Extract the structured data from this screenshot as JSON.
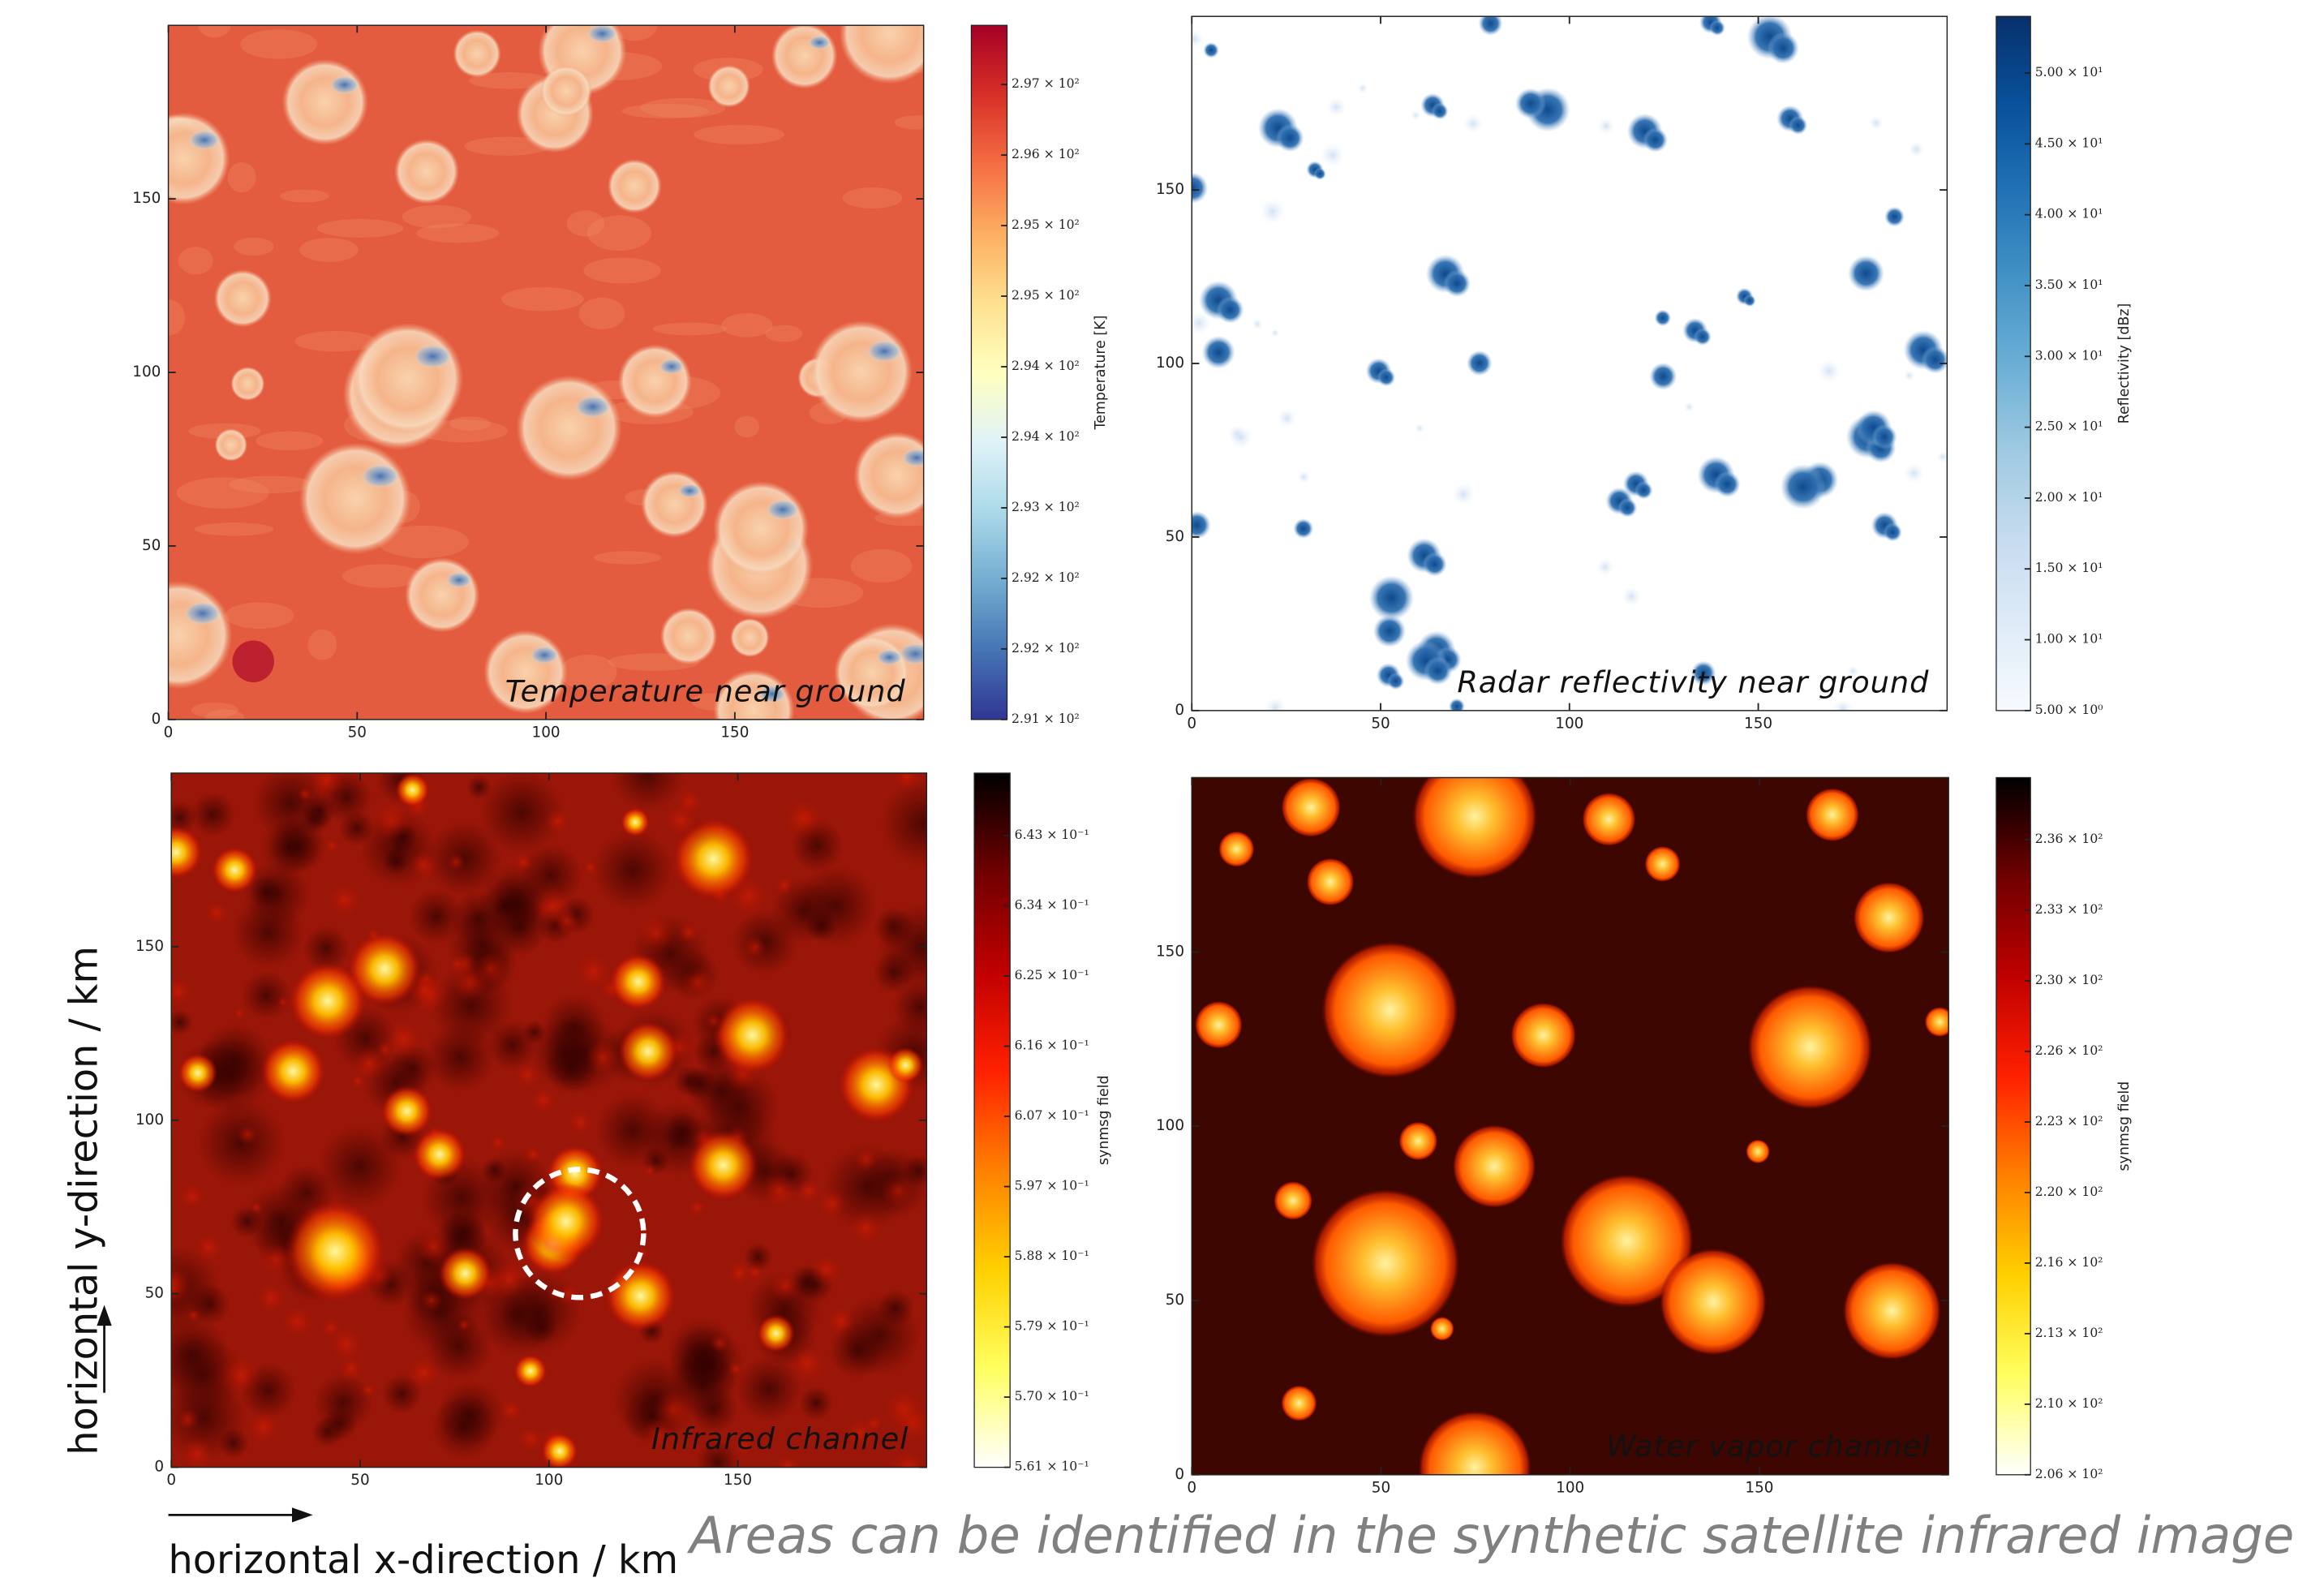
{
  "figure": {
    "ylabel": "horizontal y-direction / km",
    "xlabel": "horizontal x-direction / km",
    "caption": "Areas can be identified in the synthetic satellite infrared image"
  },
  "chart_data": [
    {
      "type": "heatmap",
      "title": "Temperature near ground",
      "xlim": [
        0,
        200
      ],
      "ylim": [
        0,
        200
      ],
      "xticks": [
        0,
        50,
        100,
        150
      ],
      "yticks": [
        0,
        50,
        100,
        150
      ],
      "colormap": [
        "#313695",
        "#4575b4",
        "#74add1",
        "#abd9e9",
        "#e0f3f8",
        "#ffffbf",
        "#fee090",
        "#fdae61",
        "#f46d43",
        "#d73027",
        "#a50026"
      ],
      "colorbar": {
        "label": "Temperature [K]",
        "lim": [
          291.1,
          297.2
        ],
        "ticks": [
          {
            "value": 291.1,
            "label": "2.91 × 10²"
          },
          {
            "value": 291.72,
            "label": "2.92 × 10²"
          },
          {
            "value": 292.34,
            "label": "2.92 × 10²"
          },
          {
            "value": 292.96,
            "label": "2.93 × 10²"
          },
          {
            "value": 293.58,
            "label": "2.94 × 10²"
          },
          {
            "value": 294.2,
            "label": "2.94 × 10²"
          },
          {
            "value": 294.82,
            "label": "2.95 × 10²"
          },
          {
            "value": 295.44,
            "label": "2.95 × 10²"
          },
          {
            "value": 296.06,
            "label": "2.96 × 10²"
          },
          {
            "value": 296.68,
            "label": "2.97 × 10²"
          }
        ]
      }
    },
    {
      "type": "heatmap",
      "title": "Radar reflectivity near ground",
      "xlim": [
        0,
        200
      ],
      "ylim": [
        0,
        200
      ],
      "xticks": [
        0,
        50,
        100,
        150
      ],
      "yticks": [
        0,
        50,
        100,
        150
      ],
      "colormap": [
        "#f7fbff",
        "#deebf7",
        "#c6dbef",
        "#9ecae1",
        "#6baed6",
        "#4292c6",
        "#2171b5",
        "#08519c",
        "#08306b"
      ],
      "colorbar": {
        "label": "Reflectivity [dBz]",
        "lim": [
          5,
          54
        ],
        "ticks": [
          {
            "value": 5,
            "label": "5.00 × 10⁰"
          },
          {
            "value": 10,
            "label": "1.00 × 10¹"
          },
          {
            "value": 15,
            "label": "1.50 × 10¹"
          },
          {
            "value": 20,
            "label": "2.00 × 10¹"
          },
          {
            "value": 25,
            "label": "2.50 × 10¹"
          },
          {
            "value": 30,
            "label": "3.00 × 10¹"
          },
          {
            "value": 35,
            "label": "3.50 × 10¹"
          },
          {
            "value": 40,
            "label": "4.00 × 10¹"
          },
          {
            "value": 45,
            "label": "4.50 × 10¹"
          },
          {
            "value": 50,
            "label": "5.00 × 10¹"
          }
        ]
      }
    },
    {
      "type": "heatmap",
      "title": "Infrared channel",
      "xlim": [
        0,
        200
      ],
      "ylim": [
        0,
        200
      ],
      "xticks": [
        0,
        50,
        100,
        150
      ],
      "yticks": [
        0,
        50,
        100,
        150
      ],
      "colormap": [
        "#ffffff",
        "#ffff60",
        "#ffd000",
        "#ff8000",
        "#ff2000",
        "#c00000",
        "#700000",
        "#000000"
      ],
      "colorbar": {
        "label": "synmsg field",
        "lim": [
          0.561,
          0.6512
        ],
        "ticks": [
          {
            "value": 0.561,
            "label": "5.61 × 10⁻¹"
          },
          {
            "value": 0.57012,
            "label": "5.70 × 10⁻¹"
          },
          {
            "value": 0.57924,
            "label": "5.79 × 10⁻¹"
          },
          {
            "value": 0.58836,
            "label": "5.88 × 10⁻¹"
          },
          {
            "value": 0.59748,
            "label": "5.97 × 10⁻¹"
          },
          {
            "value": 0.6066,
            "label": "6.07 × 10⁻¹"
          },
          {
            "value": 0.61572,
            "label": "6.16 × 10⁻¹"
          },
          {
            "value": 0.62484,
            "label": "6.25 × 10⁻¹"
          },
          {
            "value": 0.63396,
            "label": "6.34 × 10⁻¹"
          },
          {
            "value": 0.64308,
            "label": "6.43 × 10⁻¹"
          }
        ]
      }
    },
    {
      "type": "heatmap",
      "title": "Water vapor channel",
      "xlim": [
        0,
        200
      ],
      "ylim": [
        0,
        200
      ],
      "xticks": [
        0,
        50,
        100,
        150
      ],
      "yticks": [
        0,
        50,
        100,
        150
      ],
      "colormap": [
        "#ffffff",
        "#ffff60",
        "#ffd000",
        "#ff8000",
        "#ff2000",
        "#c00000",
        "#700000",
        "#000000"
      ],
      "colorbar": {
        "label": "synmsg field",
        "lim": [
          206.2,
          239.4
        ],
        "ticks": [
          {
            "value": 206.2,
            "label": "2.06 × 10²"
          },
          {
            "value": 209.56,
            "label": "2.10 × 10²"
          },
          {
            "value": 212.92,
            "label": "2.13 × 10²"
          },
          {
            "value": 216.28,
            "label": "2.16 × 10²"
          },
          {
            "value": 219.64,
            "label": "2.20 × 10²"
          },
          {
            "value": 223.0,
            "label": "2.23 × 10²"
          },
          {
            "value": 226.36,
            "label": "2.26 × 10²"
          },
          {
            "value": 229.72,
            "label": "2.30 × 10²"
          },
          {
            "value": 233.08,
            "label": "2.33 × 10²"
          },
          {
            "value": 236.44,
            "label": "2.36 × 10²"
          }
        ]
      }
    }
  ]
}
